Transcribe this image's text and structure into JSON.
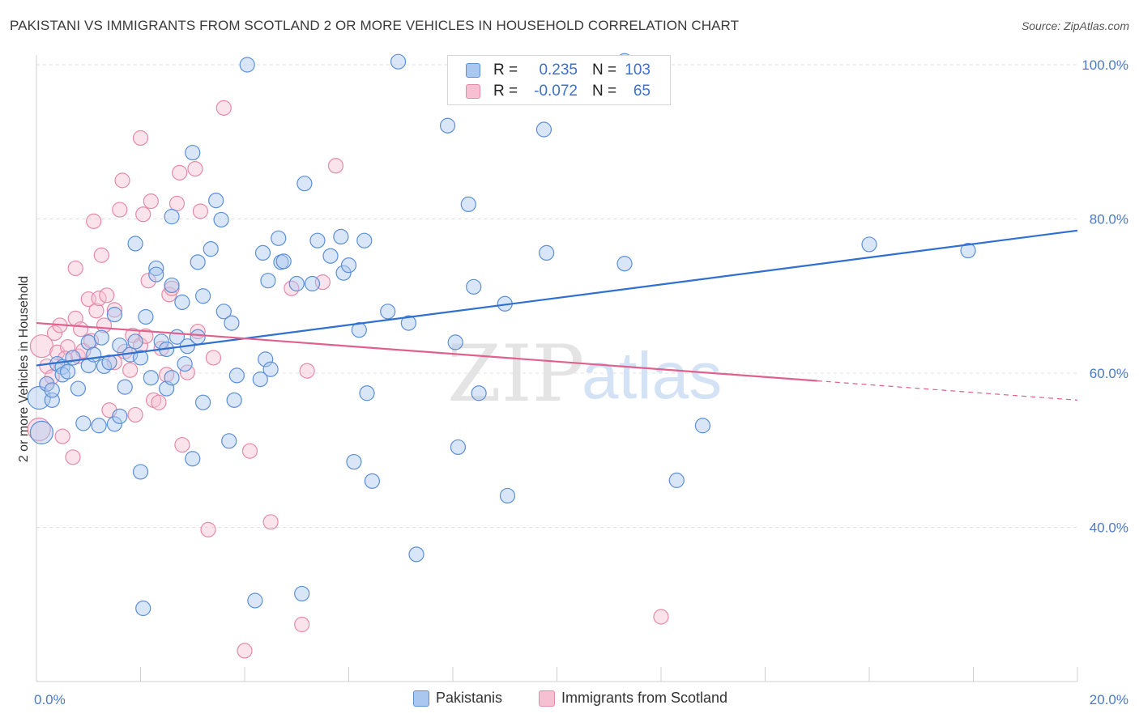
{
  "title": "PAKISTANI VS IMMIGRANTS FROM SCOTLAND 2 OR MORE VEHICLES IN HOUSEHOLD CORRELATION CHART",
  "source": "Source: ZipAtlas.com",
  "watermark": {
    "zip": "ZIP",
    "atlas": "atlas"
  },
  "colors": {
    "blue_fill": "#aac8ef",
    "blue_stroke": "#5b8fd6",
    "blue_line": "#2f6fd0",
    "pink_fill": "#f6c0d2",
    "pink_stroke": "#e58aa8",
    "pink_line": "#e0608e",
    "tick_text": "#4a7ac8",
    "grid": "#e0e0e0"
  },
  "stats": [
    {
      "r_label": "R =",
      "r_value": "0.235",
      "n_label": "N =",
      "n_value": "103",
      "color": "#aac8ef"
    },
    {
      "r_label": "R =",
      "r_value": "-0.072",
      "n_label": "N =",
      "n_value": "65",
      "color": "#f6c0d2"
    }
  ],
  "legend": [
    {
      "label": "Pakistanis",
      "color": "#aac8ef"
    },
    {
      "label": "Immigrants from Scotland",
      "color": "#f6c0d2"
    }
  ],
  "chart_data": {
    "type": "scatter",
    "ylabel": "2 or more Vehicles in Household",
    "xlim": [
      0,
      20
    ],
    "ylim": [
      20,
      100
    ],
    "y_ticks": [
      {
        "value": 40,
        "label": "40.0%"
      },
      {
        "value": 60,
        "label": "60.0%"
      },
      {
        "value": 80,
        "label": "80.0%"
      },
      {
        "value": 100,
        "label": "100.0%"
      }
    ],
    "x_ticks": [
      {
        "value": 0,
        "label": "0.0%"
      },
      {
        "value": 20,
        "label": "20.0%"
      }
    ],
    "grid": true,
    "series": [
      {
        "name": "Pakistanis",
        "trend": {
          "x": [
            0,
            20
          ],
          "y": [
            61.0,
            78.5
          ],
          "dashed_from": null
        },
        "points": [
          [
            0.05,
            56.8
          ],
          [
            0.1,
            52.3
          ],
          [
            0.2,
            58.6
          ],
          [
            0.3,
            56.5
          ],
          [
            0.3,
            57.8
          ],
          [
            0.4,
            61.2
          ],
          [
            0.5,
            60.8
          ],
          [
            0.5,
            59.8
          ],
          [
            0.6,
            60.2
          ],
          [
            0.7,
            62.0
          ],
          [
            0.8,
            58.0
          ],
          [
            0.9,
            53.5
          ],
          [
            1.0,
            61.0
          ],
          [
            1.0,
            64.0
          ],
          [
            1.1,
            62.4
          ],
          [
            1.2,
            53.2
          ],
          [
            1.25,
            64.6
          ],
          [
            1.3,
            60.9
          ],
          [
            1.4,
            61.4
          ],
          [
            1.5,
            67.6
          ],
          [
            1.5,
            53.4
          ],
          [
            1.6,
            63.6
          ],
          [
            1.6,
            54.4
          ],
          [
            1.7,
            58.2
          ],
          [
            1.8,
            62.4
          ],
          [
            1.9,
            64.1
          ],
          [
            1.9,
            76.8
          ],
          [
            2.0,
            47.2
          ],
          [
            2.0,
            62.0
          ],
          [
            2.1,
            67.3
          ],
          [
            2.2,
            59.4
          ],
          [
            2.3,
            73.6
          ],
          [
            2.3,
            72.8
          ],
          [
            2.4,
            64.1
          ],
          [
            2.5,
            58.0
          ],
          [
            2.5,
            63.1
          ],
          [
            2.6,
            59.4
          ],
          [
            2.6,
            71.4
          ],
          [
            2.6,
            80.3
          ],
          [
            2.7,
            64.7
          ],
          [
            2.8,
            69.2
          ],
          [
            2.85,
            61.2
          ],
          [
            2.9,
            63.5
          ],
          [
            3.0,
            48.9
          ],
          [
            3.0,
            88.6
          ],
          [
            3.1,
            74.4
          ],
          [
            3.1,
            64.7
          ],
          [
            3.2,
            70.0
          ],
          [
            3.2,
            56.2
          ],
          [
            3.35,
            76.1
          ],
          [
            3.45,
            82.4
          ],
          [
            3.55,
            79.9
          ],
          [
            3.6,
            68.0
          ],
          [
            3.7,
            51.2
          ],
          [
            3.75,
            66.5
          ],
          [
            3.8,
            56.5
          ],
          [
            3.85,
            59.7
          ],
          [
            4.05,
            100.0
          ],
          [
            4.2,
            30.5
          ],
          [
            4.3,
            59.2
          ],
          [
            4.35,
            75.6
          ],
          [
            4.4,
            61.8
          ],
          [
            4.45,
            72.0
          ],
          [
            4.5,
            60.5
          ],
          [
            4.65,
            77.5
          ],
          [
            4.7,
            74.4
          ],
          [
            4.75,
            74.5
          ],
          [
            5.0,
            71.6
          ],
          [
            5.1,
            31.4
          ],
          [
            5.15,
            84.6
          ],
          [
            5.3,
            71.6
          ],
          [
            5.4,
            77.2
          ],
          [
            5.65,
            75.2
          ],
          [
            5.85,
            77.7
          ],
          [
            5.9,
            73.0
          ],
          [
            6.0,
            74.0
          ],
          [
            6.1,
            48.5
          ],
          [
            6.2,
            65.6
          ],
          [
            6.3,
            77.2
          ],
          [
            6.35,
            57.4
          ],
          [
            6.45,
            46.0
          ],
          [
            6.75,
            68.0
          ],
          [
            7.15,
            66.5
          ],
          [
            7.3,
            36.5
          ],
          [
            7.9,
            92.1
          ],
          [
            8.05,
            64.0
          ],
          [
            8.1,
            50.4
          ],
          [
            8.3,
            81.9
          ],
          [
            8.4,
            71.2
          ],
          [
            8.5,
            57.4
          ],
          [
            9.0,
            69.0
          ],
          [
            9.05,
            44.1
          ],
          [
            9.75,
            91.6
          ],
          [
            9.8,
            75.6
          ],
          [
            11.3,
            74.2
          ],
          [
            12.3,
            46.1
          ],
          [
            12.8,
            53.2
          ],
          [
            16.0,
            76.7
          ],
          [
            17.9,
            75.9
          ],
          [
            6.95,
            100.4
          ],
          [
            11.3,
            100.5
          ],
          [
            2.05,
            29.5
          ]
        ]
      },
      {
        "name": "Immigrants from Scotland",
        "trend": {
          "x": [
            0,
            20
          ],
          "y": [
            66.5,
            56.5
          ],
          "dashed_from": 15.0
        },
        "points": [
          [
            0.05,
            52.7
          ],
          [
            0.1,
            63.5
          ],
          [
            0.2,
            60.9
          ],
          [
            0.2,
            58.6
          ],
          [
            0.35,
            65.2
          ],
          [
            0.4,
            62.7
          ],
          [
            0.5,
            51.8
          ],
          [
            0.6,
            63.4
          ],
          [
            0.7,
            49.1
          ],
          [
            0.75,
            67.1
          ],
          [
            0.75,
            73.6
          ],
          [
            0.8,
            62.2
          ],
          [
            0.9,
            62.9
          ],
          [
            1.0,
            69.6
          ],
          [
            1.1,
            79.7
          ],
          [
            1.15,
            68.1
          ],
          [
            1.2,
            69.7
          ],
          [
            1.25,
            75.3
          ],
          [
            1.3,
            66.2
          ],
          [
            1.35,
            70.1
          ],
          [
            1.4,
            55.2
          ],
          [
            1.5,
            61.4
          ],
          [
            1.5,
            68.2
          ],
          [
            1.6,
            81.2
          ],
          [
            1.65,
            85.0
          ],
          [
            1.8,
            60.4
          ],
          [
            1.85,
            64.9
          ],
          [
            1.9,
            54.6
          ],
          [
            2.0,
            90.5
          ],
          [
            2.0,
            63.6
          ],
          [
            2.05,
            80.6
          ],
          [
            2.1,
            64.8
          ],
          [
            2.15,
            72.0
          ],
          [
            2.2,
            82.3
          ],
          [
            2.25,
            56.5
          ],
          [
            2.35,
            56.2
          ],
          [
            2.5,
            59.8
          ],
          [
            2.55,
            70.2
          ],
          [
            2.6,
            71.0
          ],
          [
            2.7,
            82.0
          ],
          [
            2.75,
            86.0
          ],
          [
            2.8,
            50.7
          ],
          [
            3.05,
            86.5
          ],
          [
            3.1,
            65.4
          ],
          [
            3.15,
            81.0
          ],
          [
            3.3,
            39.7
          ],
          [
            3.6,
            94.4
          ],
          [
            4.0,
            24.0
          ],
          [
            4.1,
            49.9
          ],
          [
            4.5,
            40.7
          ],
          [
            4.9,
            71.0
          ],
          [
            5.1,
            27.4
          ],
          [
            5.2,
            60.3
          ],
          [
            5.5,
            71.8
          ],
          [
            5.75,
            86.9
          ],
          [
            12.0,
            28.4
          ],
          [
            0.3,
            59.5
          ],
          [
            0.45,
            66.2
          ],
          [
            0.55,
            61.9
          ],
          [
            0.85,
            65.7
          ],
          [
            1.05,
            64.2
          ],
          [
            1.7,
            62.8
          ],
          [
            2.4,
            63.2
          ],
          [
            2.9,
            60.1
          ],
          [
            3.4,
            62.0
          ]
        ]
      }
    ]
  }
}
